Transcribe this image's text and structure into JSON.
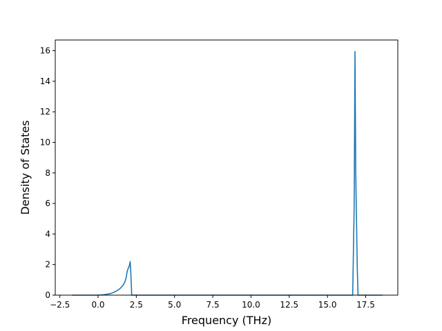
{
  "chart_data": {
    "type": "line",
    "title": "",
    "xlabel": "Frequency (THz)",
    "ylabel": "Density of States",
    "xlim": [
      -2.8,
      19.6
    ],
    "ylim": [
      0,
      16.7
    ],
    "xticks": [
      -2.5,
      0.0,
      2.5,
      5.0,
      7.5,
      10.0,
      12.5,
      15.0,
      17.5
    ],
    "xtick_labels": [
      "−2.5",
      "0.0",
      "2.5",
      "5.0",
      "7.5",
      "10.0",
      "12.5",
      "15.0",
      "17.5"
    ],
    "yticks": [
      0,
      2,
      4,
      6,
      8,
      10,
      12,
      14,
      16
    ],
    "ytick_labels": [
      "0",
      "2",
      "4",
      "6",
      "8",
      "10",
      "12",
      "14",
      "16"
    ],
    "grid": false,
    "line_color": "#1f77b4",
    "series": [
      {
        "x": [
          -1.7,
          0.0,
          0.4,
          0.8,
          1.0,
          1.2,
          1.4,
          1.6,
          1.75,
          1.85,
          1.9,
          1.95,
          2.0,
          2.05,
          2.1,
          2.15,
          2.2,
          2.25,
          2.4,
          5.0,
          10.0,
          15.0,
          16.5,
          16.65,
          16.75,
          16.8,
          16.85,
          16.95,
          17.0,
          17.3,
          18.6
        ],
        "y": [
          0.0,
          0.0,
          0.03,
          0.1,
          0.17,
          0.27,
          0.4,
          0.6,
          0.85,
          1.2,
          1.55,
          1.7,
          1.8,
          1.95,
          2.2,
          1.3,
          0.0,
          0.0,
          0.0,
          0.0,
          0.0,
          0.0,
          0.0,
          0.0,
          6.0,
          15.95,
          8.0,
          1.8,
          0.0,
          0.0,
          0.0
        ]
      }
    ]
  }
}
